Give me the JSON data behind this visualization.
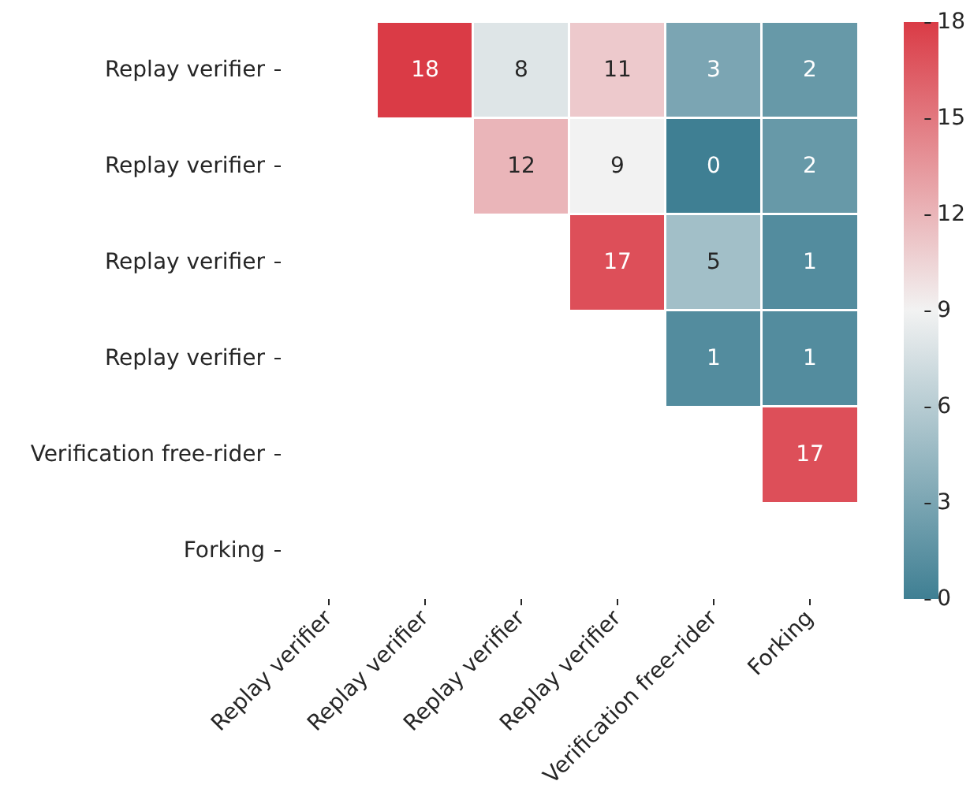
{
  "chart_data": {
    "type": "heatmap",
    "categories": [
      "Replay verifier",
      "Replay verifier",
      "Replay verifier",
      "Replay verifier",
      "Verification free-rider",
      "Forking"
    ],
    "y_categories": [
      "Replay verifier",
      "Replay verifier",
      "Replay verifier",
      "Replay verifier",
      "Verification free-rider",
      "Forking"
    ],
    "cells": [
      [
        null,
        18,
        8,
        11,
        3,
        2
      ],
      [
        null,
        null,
        12,
        9,
        0,
        2
      ],
      [
        null,
        null,
        null,
        17,
        5,
        1
      ],
      [
        null,
        null,
        null,
        null,
        1,
        1
      ],
      [
        null,
        null,
        null,
        null,
        null,
        17
      ],
      [
        null,
        null,
        null,
        null,
        null,
        null
      ]
    ],
    "data_labels": true,
    "clim": [
      0,
      18
    ],
    "cticks": [
      0,
      3,
      6,
      9,
      12,
      15,
      18
    ]
  }
}
